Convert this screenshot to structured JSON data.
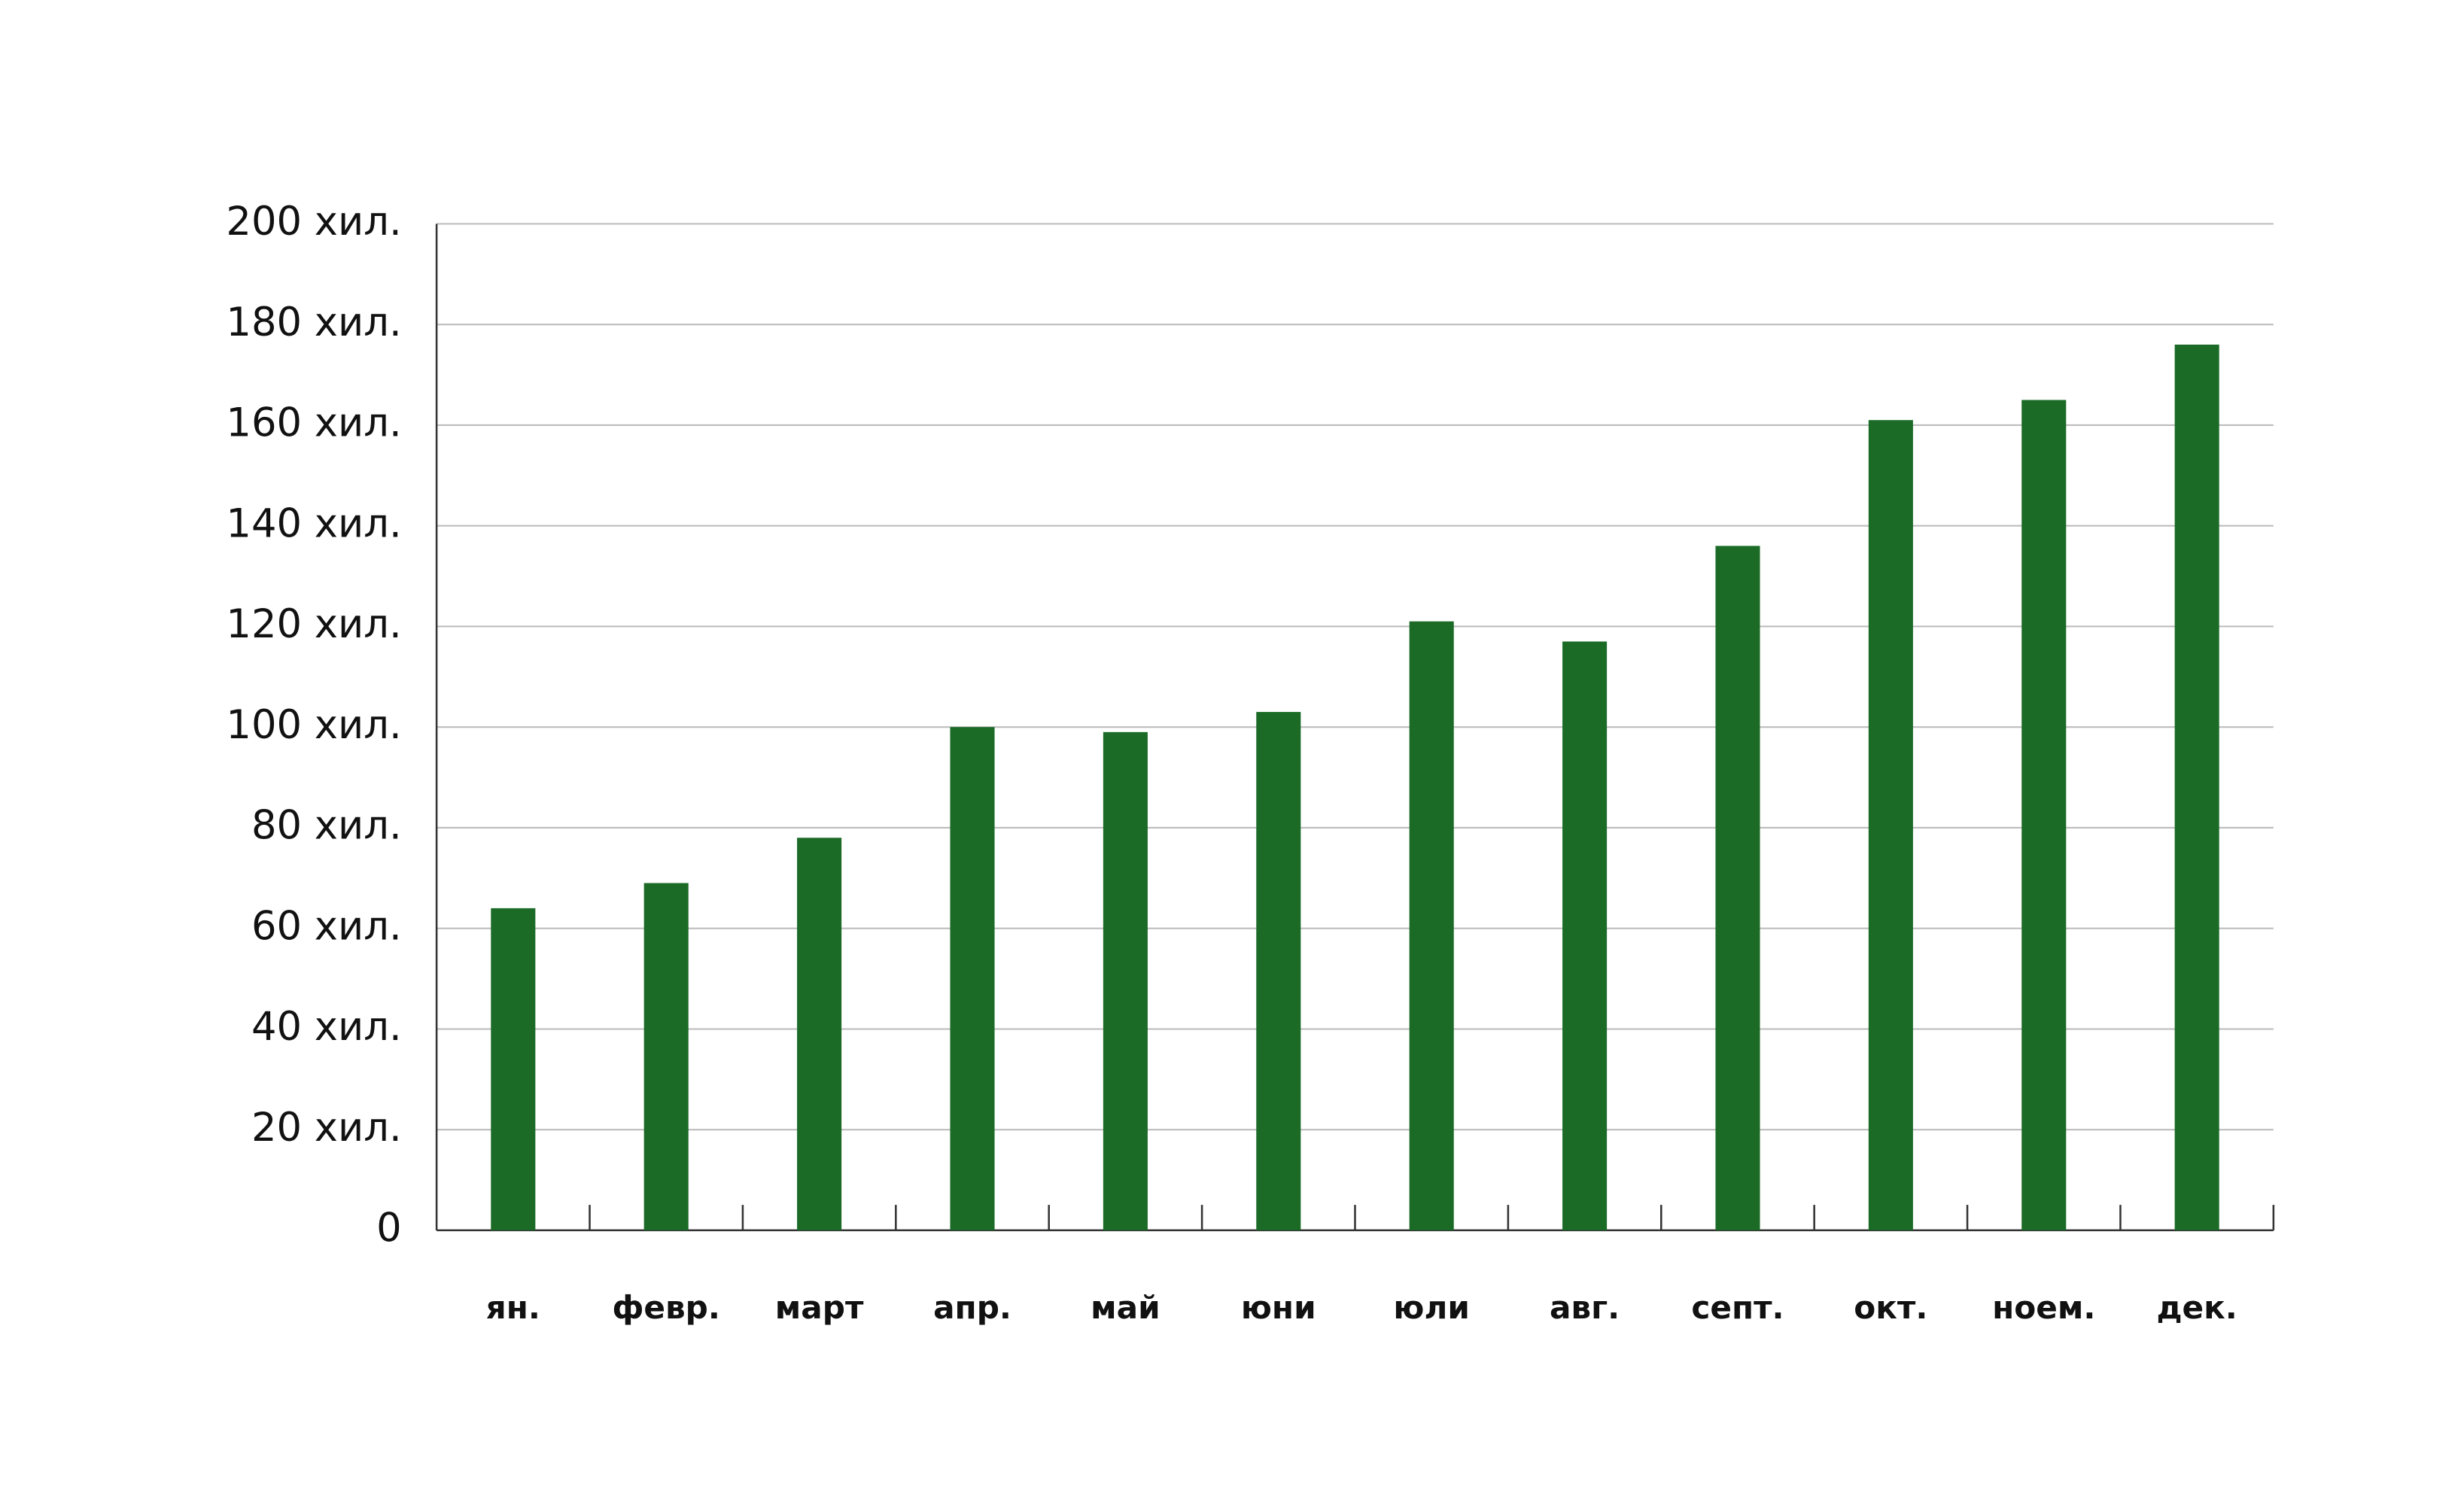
{
  "chart_data": {
    "type": "bar",
    "categories": [
      "ян.",
      "февр.",
      "март",
      "апр.",
      "май",
      "юни",
      "юли",
      "авг.",
      "септ.",
      "окт.",
      "ноем.",
      "дек."
    ],
    "values": [
      64000,
      69000,
      78000,
      100000,
      99000,
      103000,
      121000,
      117000,
      136000,
      161000,
      165000,
      176000
    ],
    "color": "#1b6b27",
    "ylim": [
      0,
      200000
    ],
    "yticks": [
      0,
      {
        "value": 20000,
        "label": "20 хил."
      },
      {
        "value": 40000,
        "label": "40 хил."
      },
      {
        "value": 60000,
        "label": "60 хил."
      },
      {
        "value": 80000,
        "label": "80 хил."
      },
      {
        "value": 100000,
        "label": "100 хил."
      },
      {
        "value": 120000,
        "label": "120 хил."
      },
      {
        "value": 140000,
        "label": "140 хил."
      },
      {
        "value": 160000,
        "label": "160 хил."
      },
      {
        "value": 180000,
        "label": "180 хил."
      },
      {
        "value": 200000,
        "label": "200 хил."
      }
    ],
    "grid": true
  }
}
